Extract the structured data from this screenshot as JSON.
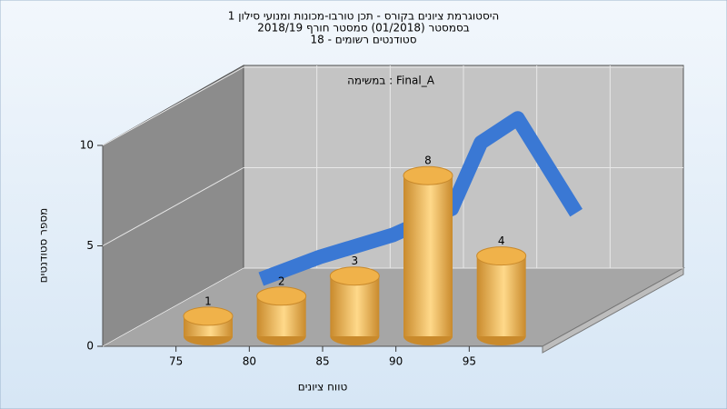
{
  "chart_data": {
    "type": "histogram",
    "title": [
      "היסטוגרמת ציונים בקורס - תכן טורבו-מכונות ומנועי סילון 1",
      "בסמסטר  (01/2018)  סמסטר חורף 2018/19",
      "סטודנטים רשומים - 18"
    ],
    "annotation": "במשימה : Final_A",
    "x_label": "טווח ציונים",
    "y_label": "מספר סטודנטים",
    "bins": [
      75,
      80,
      85,
      90,
      95,
      100
    ],
    "values": [
      1,
      2,
      3,
      8,
      4
    ],
    "color": "#e8a640",
    "series": [
      {
        "type": "line",
        "color": "#3a78d4",
        "x": [
          76,
          80,
          85,
          89,
          91,
          93.5,
          97.5
        ],
        "values": [
          1.4,
          2.5,
          3.6,
          4.9,
          8.2,
          9.4,
          4.7
        ]
      }
    ],
    "xlim": [
      70,
      100
    ],
    "xticks": [
      75,
      80,
      85,
      90,
      95
    ],
    "ylim": [
      0,
      10
    ],
    "yticks": [
      0,
      5,
      10
    ],
    "grid": true
  }
}
